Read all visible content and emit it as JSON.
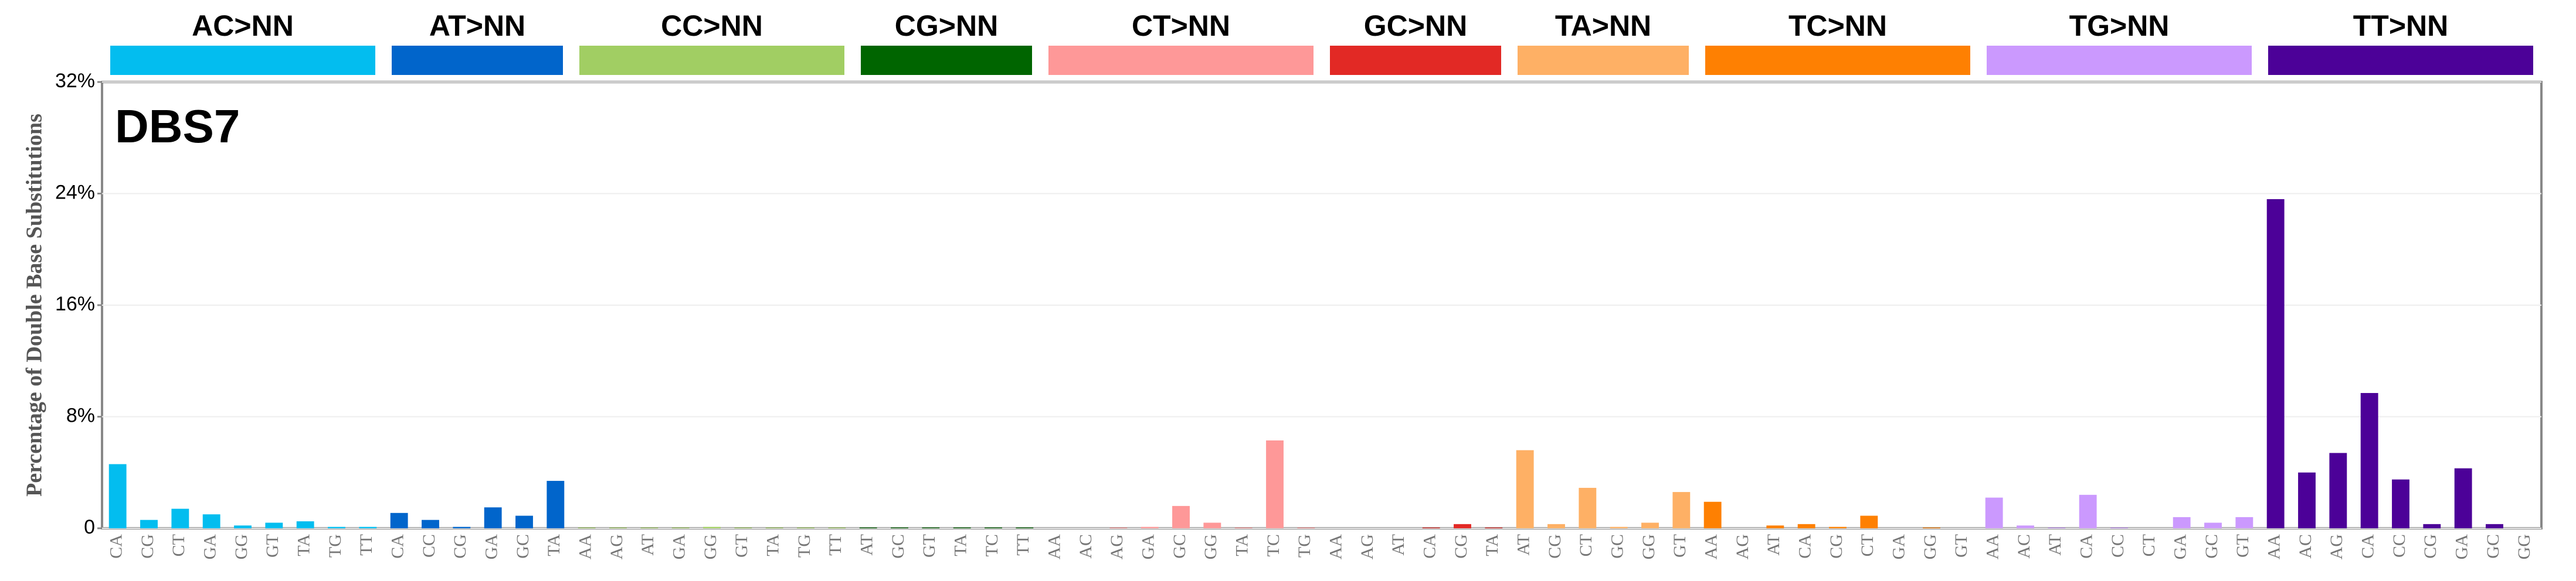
{
  "chart_data": {
    "type": "bar",
    "title": "DBS7",
    "y_label": "Percentage of Double Base Substitutions",
    "ylim": [
      0,
      32
    ],
    "yticks": [
      0,
      {
        "value": 8,
        "label": "8%"
      },
      {
        "value": 16,
        "label": "16%"
      },
      {
        "value": 24,
        "label": "24%"
      },
      {
        "value": 32,
        "label": "32%"
      }
    ],
    "grid": true,
    "groups": [
      {
        "name": "AC>NN",
        "color": "#03bdef",
        "categories": [
          "CA",
          "CG",
          "CT",
          "GA",
          "GG",
          "GT",
          "TA",
          "TG",
          "TT"
        ],
        "values": [
          4.6,
          0.6,
          1.4,
          1.0,
          0.2,
          0.4,
          0.5,
          0.1,
          0.1
        ]
      },
      {
        "name": "AT>NN",
        "color": "#0165cb",
        "categories": [
          "CA",
          "CC",
          "CG",
          "GA",
          "GC",
          "TA"
        ],
        "values": [
          1.1,
          0.6,
          0.1,
          1.5,
          0.9,
          3.4
        ]
      },
      {
        "name": "CC>NN",
        "color": "#a1ce63",
        "categories": [
          "AA",
          "AG",
          "AT",
          "GA",
          "GG",
          "GT",
          "TA",
          "TG",
          "TT"
        ],
        "values": [
          0.05,
          0.05,
          0.05,
          0.05,
          0.1,
          0.05,
          0.05,
          0.05,
          0.05
        ]
      },
      {
        "name": "CG>NN",
        "color": "#006500",
        "categories": [
          "AT",
          "GC",
          "GT",
          "TA",
          "TC",
          "TT"
        ],
        "values": [
          0.05,
          0.05,
          0.05,
          0.05,
          0.05,
          0.05
        ]
      },
      {
        "name": "CT>NN",
        "color": "#fe9898",
        "categories": [
          "AA",
          "AC",
          "AG",
          "GA",
          "GC",
          "GG",
          "TA",
          "TC",
          "TG"
        ],
        "values": [
          0,
          0,
          0.05,
          0.1,
          1.6,
          0.4,
          0.05,
          6.3,
          0.05
        ]
      },
      {
        "name": "GC>NN",
        "color": "#e22925",
        "categories": [
          "AA",
          "AG",
          "AT",
          "CA",
          "CG",
          "TA"
        ],
        "values": [
          0,
          0,
          0,
          0.05,
          0.3,
          0.05
        ]
      },
      {
        "name": "TA>NN",
        "color": "#feb065",
        "categories": [
          "AT",
          "CG",
          "CT",
          "GC",
          "GG",
          "GT"
        ],
        "values": [
          5.6,
          0.3,
          2.9,
          0.1,
          0.4,
          2.6
        ]
      },
      {
        "name": "TC>NN",
        "color": "#fe8002",
        "categories": [
          "AA",
          "AG",
          "AT",
          "CA",
          "CG",
          "CT",
          "GA",
          "GG",
          "GT"
        ],
        "values": [
          1.9,
          0,
          0.2,
          0.3,
          0.1,
          0.9,
          0,
          0.05,
          0
        ]
      },
      {
        "name": "TG>NN",
        "color": "#cb99fe",
        "categories": [
          "AA",
          "AC",
          "AT",
          "CA",
          "CC",
          "CT",
          "GA",
          "GC",
          "GT"
        ],
        "values": [
          2.2,
          0.2,
          0.05,
          2.4,
          0.05,
          0,
          0.8,
          0.4,
          0.8
        ]
      },
      {
        "name": "TT>NN",
        "color": "#4c0198",
        "categories": [
          "AA",
          "AC",
          "AG",
          "CA",
          "CC",
          "CG",
          "GA",
          "GC",
          "GG"
        ],
        "values": [
          23.6,
          4.0,
          5.4,
          9.7,
          3.5,
          0.3,
          4.3,
          0.3,
          0
        ]
      }
    ]
  }
}
